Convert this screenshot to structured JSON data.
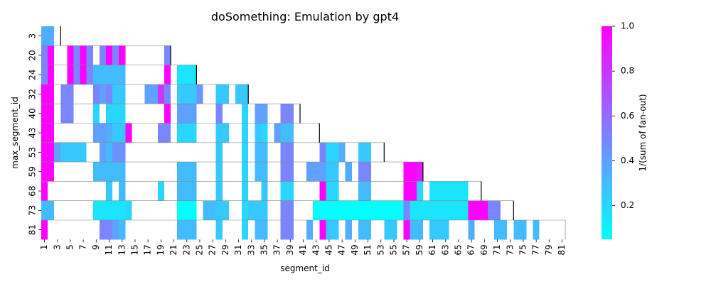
{
  "chart_data": {
    "type": "heatmap",
    "title": "doSomething: Emulation by gpt4",
    "xlabel": "segment_id",
    "ylabel": "max_segment_id",
    "x_ticks": [
      1,
      3,
      5,
      7,
      9,
      11,
      13,
      15,
      17,
      19,
      21,
      23,
      25,
      27,
      29,
      31,
      33,
      35,
      37,
      39,
      41,
      43,
      45,
      47,
      49,
      51,
      53,
      55,
      57,
      59,
      61,
      63,
      65,
      67,
      69,
      71,
      73,
      75,
      77,
      79,
      81
    ],
    "y_rows": [
      3,
      20,
      24,
      32,
      40,
      43,
      53,
      59,
      68,
      73,
      81
    ],
    "colorbar": {
      "label": "1/(sum of fan-out)",
      "min": 0.05,
      "max": 1.0,
      "ticks": [
        "0.2",
        "0.4",
        "0.6",
        "0.8",
        "1.0"
      ],
      "tick_values": [
        0.2,
        0.4,
        0.6,
        0.8,
        1.0
      ],
      "colormap": "cool",
      "low_color": "#00ffff",
      "high_color": "#ff00ff"
    },
    "rows": [
      {
        "max_segment_id": 3,
        "cells": [
          [
            1,
            2,
            0.35
          ]
        ]
      },
      {
        "max_segment_id": 20,
        "cells": [
          [
            1,
            1,
            0.5
          ],
          [
            2,
            2,
            1.0
          ],
          [
            5,
            5,
            1.0
          ],
          [
            6,
            6,
            0.5
          ],
          [
            7,
            7,
            1.0
          ],
          [
            8,
            8,
            0.5
          ],
          [
            10,
            10,
            0.5
          ],
          [
            11,
            11,
            1.0
          ],
          [
            12,
            12,
            0.5
          ],
          [
            13,
            13,
            1.0
          ],
          [
            20,
            20,
            0.5
          ]
        ]
      },
      {
        "max_segment_id": 24,
        "cells": [
          [
            1,
            1,
            0.5
          ],
          [
            2,
            2,
            1.0
          ],
          [
            5,
            5,
            1.0
          ],
          [
            6,
            6,
            0.5
          ],
          [
            7,
            7,
            1.0
          ],
          [
            8,
            8,
            0.5
          ],
          [
            9,
            13,
            0.3
          ],
          [
            20,
            20,
            1.0
          ],
          [
            22,
            24,
            0.15
          ]
        ]
      },
      {
        "max_segment_id": 32,
        "cells": [
          [
            1,
            2,
            1.0
          ],
          [
            4,
            5,
            0.5
          ],
          [
            9,
            9,
            0.5
          ],
          [
            10,
            10,
            0.4
          ],
          [
            11,
            11,
            0.5
          ],
          [
            12,
            13,
            0.25
          ],
          [
            17,
            18,
            0.4
          ],
          [
            19,
            19,
            0.8
          ],
          [
            20,
            20,
            0.5
          ],
          [
            22,
            24,
            0.25
          ],
          [
            25,
            25,
            0.45
          ],
          [
            28,
            29,
            0.25
          ],
          [
            31,
            32,
            0.25
          ]
        ]
      },
      {
        "max_segment_id": 40,
        "cells": [
          [
            1,
            2,
            1.0
          ],
          [
            4,
            5,
            0.5
          ],
          [
            9,
            9,
            0.2
          ],
          [
            11,
            13,
            0.2
          ],
          [
            20,
            20,
            1.0
          ],
          [
            22,
            24,
            0.4
          ],
          [
            28,
            28,
            0.5
          ],
          [
            32,
            32,
            0.2
          ],
          [
            34,
            35,
            0.4
          ],
          [
            38,
            39,
            0.5
          ]
        ]
      },
      {
        "max_segment_id": 43,
        "cells": [
          [
            1,
            2,
            1.0
          ],
          [
            9,
            10,
            0.4
          ],
          [
            11,
            11,
            0.35
          ],
          [
            12,
            13,
            0.25
          ],
          [
            14,
            14,
            1.0
          ],
          [
            19,
            20,
            0.5
          ],
          [
            22,
            24,
            0.2
          ],
          [
            28,
            29,
            0.25
          ],
          [
            32,
            32,
            0.2
          ],
          [
            34,
            34,
            0.25
          ],
          [
            35,
            35,
            0.2
          ],
          [
            37,
            37,
            0.4
          ],
          [
            38,
            39,
            0.3
          ]
        ]
      },
      {
        "max_segment_id": 53,
        "cells": [
          [
            1,
            2,
            1.0
          ],
          [
            3,
            3,
            0.4
          ],
          [
            4,
            7,
            0.25
          ],
          [
            10,
            10,
            0.4
          ],
          [
            11,
            11,
            0.3
          ],
          [
            12,
            13,
            0.45
          ],
          [
            28,
            28,
            0.25
          ],
          [
            32,
            32,
            0.2
          ],
          [
            34,
            35,
            0.3
          ],
          [
            38,
            39,
            0.5
          ],
          [
            44,
            44,
            0.5
          ],
          [
            45,
            46,
            0.2
          ],
          [
            47,
            47,
            0.35
          ],
          [
            50,
            51,
            0.25
          ]
        ]
      },
      {
        "max_segment_id": 59,
        "cells": [
          [
            1,
            2,
            1.0
          ],
          [
            9,
            13,
            0.3
          ],
          [
            22,
            24,
            0.3
          ],
          [
            28,
            28,
            0.25
          ],
          [
            32,
            32,
            0.2
          ],
          [
            34,
            35,
            0.3
          ],
          [
            38,
            39,
            0.5
          ],
          [
            42,
            44,
            0.4
          ],
          [
            45,
            46,
            0.25
          ],
          [
            48,
            48,
            0.35
          ],
          [
            50,
            51,
            0.5
          ],
          [
            57,
            58,
            1.0
          ],
          [
            59,
            59,
            0.9
          ]
        ]
      },
      {
        "max_segment_id": 68,
        "cells": [
          [
            1,
            1,
            1.0
          ],
          [
            11,
            11,
            0.25
          ],
          [
            13,
            13,
            0.3
          ],
          [
            19,
            19,
            0.2
          ],
          [
            22,
            24,
            0.3
          ],
          [
            28,
            28,
            0.25
          ],
          [
            32,
            32,
            0.2
          ],
          [
            35,
            35,
            0.25
          ],
          [
            38,
            39,
            0.2
          ],
          [
            44,
            44,
            1.0
          ],
          [
            45,
            46,
            0.2
          ],
          [
            50,
            51,
            0.3
          ],
          [
            57,
            58,
            1.0
          ],
          [
            59,
            59,
            0.2
          ],
          [
            61,
            66,
            0.15
          ]
        ]
      },
      {
        "max_segment_id": 73,
        "cells": [
          [
            1,
            2,
            0.3
          ],
          [
            9,
            10,
            0.15
          ],
          [
            11,
            13,
            0.15
          ],
          [
            14,
            14,
            0.2
          ],
          [
            22,
            24,
            0.05
          ],
          [
            26,
            27,
            0.3
          ],
          [
            28,
            29,
            0.25
          ],
          [
            32,
            32,
            0.2
          ],
          [
            33,
            35,
            0.25
          ],
          [
            38,
            39,
            0.5
          ],
          [
            43,
            56,
            0.05
          ],
          [
            57,
            57,
            0.5
          ],
          [
            58,
            66,
            0.15
          ],
          [
            67,
            69,
            1.0
          ],
          [
            70,
            71,
            0.5
          ]
        ]
      },
      {
        "max_segment_id": 81,
        "cells": [
          [
            1,
            1,
            1.0
          ],
          [
            10,
            11,
            0.5
          ],
          [
            12,
            12,
            0.4
          ],
          [
            13,
            13,
            0.3
          ],
          [
            22,
            24,
            0.3
          ],
          [
            28,
            28,
            0.25
          ],
          [
            32,
            32,
            0.2
          ],
          [
            34,
            35,
            0.3
          ],
          [
            38,
            39,
            0.5
          ],
          [
            42,
            42,
            0.35
          ],
          [
            44,
            44,
            1.0
          ],
          [
            45,
            46,
            0.25
          ],
          [
            48,
            48,
            0.35
          ],
          [
            50,
            51,
            0.3
          ],
          [
            54,
            55,
            0.25
          ],
          [
            57,
            57,
            1.0
          ],
          [
            58,
            59,
            0.3
          ],
          [
            61,
            63,
            0.25
          ],
          [
            67,
            67,
            0.35
          ],
          [
            71,
            72,
            0.3
          ],
          [
            74,
            75,
            0.3
          ],
          [
            77,
            77,
            0.3
          ]
        ]
      }
    ]
  }
}
